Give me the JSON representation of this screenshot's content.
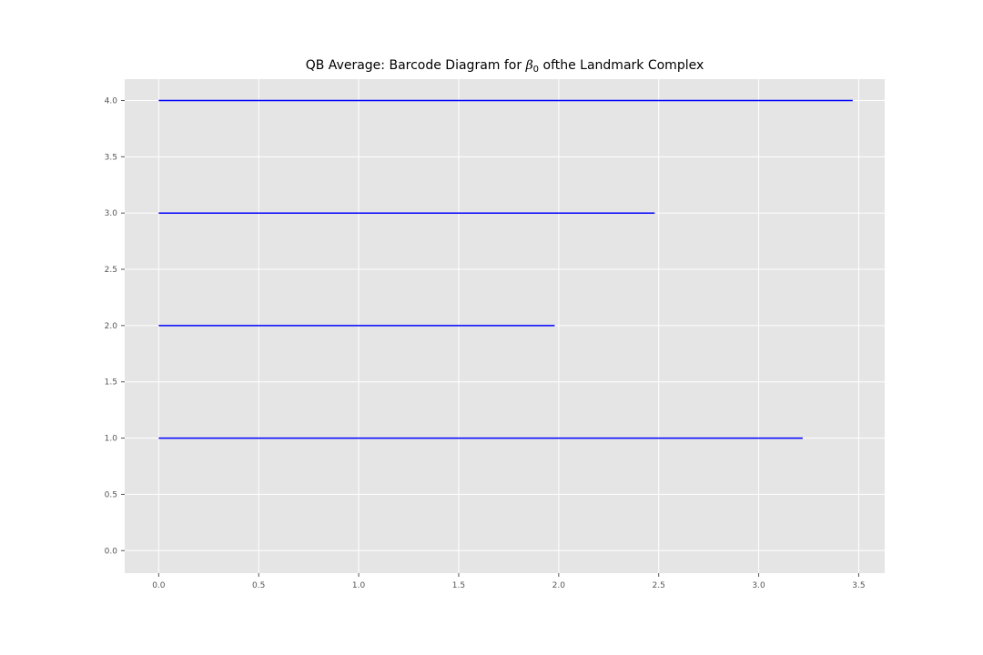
{
  "chart_data": {
    "type": "barcode",
    "title": {
      "prefix": "QB Average: Barcode Diagram for ",
      "symbol": "β",
      "subscript": "0",
      "suffix": " ofthe Landmark Complex"
    },
    "xlabel": "",
    "ylabel": "",
    "xlim": [
      -0.17,
      3.63
    ],
    "ylim": [
      -0.2,
      4.19
    ],
    "xticks": [
      0.0,
      0.5,
      1.0,
      1.5,
      2.0,
      2.5,
      3.0,
      3.5
    ],
    "yticks": [
      0.0,
      0.5,
      1.0,
      1.5,
      2.0,
      2.5,
      3.0,
      3.5,
      4.0
    ],
    "grid": true,
    "style": "ggplot",
    "bar_color": "#0000ff",
    "background_color": "#e5e5e5",
    "grid_color": "#ffffff",
    "bars": [
      {
        "y": 1.0,
        "start": 0.0,
        "end": 3.22
      },
      {
        "y": 2.0,
        "start": 0.0,
        "end": 1.98
      },
      {
        "y": 3.0,
        "start": 0.0,
        "end": 2.48
      },
      {
        "y": 4.0,
        "start": 0.0,
        "end": 3.47
      }
    ]
  }
}
